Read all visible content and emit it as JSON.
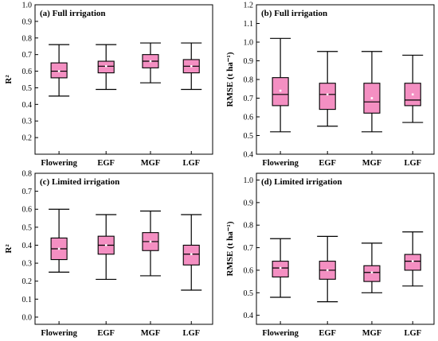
{
  "colors": {
    "box_fill": "#f48fc2",
    "whisker": "#000000",
    "mean_marker": "#ffffff",
    "frame": "#000000"
  },
  "chart_data": [
    {
      "id": "a",
      "type": "box",
      "title": "(a)  Full irrigation",
      "ylabel": "R²",
      "ylim": [
        0.1,
        1.0
      ],
      "yticks": [
        "0.2",
        "0.3",
        "0.4",
        "0.5",
        "0.6",
        "0.7",
        "0.8",
        "0.9",
        "1.0"
      ],
      "categories": [
        "Flowering",
        "EGF",
        "MGF",
        "LGF"
      ],
      "boxes": [
        {
          "min": 0.45,
          "q1": 0.56,
          "median": 0.6,
          "q3": 0.65,
          "max": 0.76,
          "mean": 0.6
        },
        {
          "min": 0.49,
          "q1": 0.59,
          "median": 0.63,
          "q3": 0.66,
          "max": 0.76,
          "mean": 0.63
        },
        {
          "min": 0.53,
          "q1": 0.62,
          "median": 0.66,
          "q3": 0.7,
          "max": 0.77,
          "mean": 0.66
        },
        {
          "min": 0.49,
          "q1": 0.59,
          "median": 0.63,
          "q3": 0.67,
          "max": 0.77,
          "mean": 0.63
        }
      ]
    },
    {
      "id": "b",
      "type": "box",
      "title": "(b)  Full irrigation",
      "ylabel": "RMSE (t ha⁻¹)",
      "ylim": [
        0.4,
        1.2
      ],
      "yticks": [
        "0.4",
        "0.5",
        "0.6",
        "0.7",
        "0.8",
        "0.9",
        "1.0",
        "1.1",
        "1.2"
      ],
      "categories": [
        "Flowering",
        "EGF",
        "MGF",
        "LGF"
      ],
      "boxes": [
        {
          "min": 0.52,
          "q1": 0.66,
          "median": 0.72,
          "q3": 0.81,
          "max": 1.02,
          "mean": 0.74
        },
        {
          "min": 0.55,
          "q1": 0.64,
          "median": 0.72,
          "q3": 0.78,
          "max": 0.95,
          "mean": 0.72
        },
        {
          "min": 0.52,
          "q1": 0.62,
          "median": 0.68,
          "q3": 0.78,
          "max": 0.95,
          "mean": 0.7
        },
        {
          "min": 0.57,
          "q1": 0.66,
          "median": 0.69,
          "q3": 0.78,
          "max": 0.93,
          "mean": 0.72
        }
      ]
    },
    {
      "id": "c",
      "type": "box",
      "title": "(c)  Limited irrigation",
      "ylabel": "R²",
      "ylim": [
        -0.04,
        0.8
      ],
      "yticks": [
        "0.0",
        "0.1",
        "0.2",
        "0.3",
        "0.4",
        "0.5",
        "0.6",
        "0.7",
        "0.8"
      ],
      "categories": [
        "Flowering",
        "EGF",
        "MGF",
        "LGF"
      ],
      "boxes": [
        {
          "min": 0.25,
          "q1": 0.32,
          "median": 0.38,
          "q3": 0.44,
          "max": 0.6,
          "mean": 0.38
        },
        {
          "min": 0.21,
          "q1": 0.35,
          "median": 0.4,
          "q3": 0.45,
          "max": 0.57,
          "mean": 0.4
        },
        {
          "min": 0.23,
          "q1": 0.37,
          "median": 0.42,
          "q3": 0.47,
          "max": 0.59,
          "mean": 0.42
        },
        {
          "min": 0.15,
          "q1": 0.29,
          "median": 0.35,
          "q3": 0.4,
          "max": 0.57,
          "mean": 0.35
        }
      ]
    },
    {
      "id": "d",
      "type": "box",
      "title": "(d)  Limited irrigation",
      "ylabel": "RMSE (t ha⁻¹)",
      "ylim": [
        0.36,
        1.03
      ],
      "yticks": [
        "0.4",
        "0.5",
        "0.6",
        "0.7",
        "0.8",
        "0.9",
        "1.0"
      ],
      "categories": [
        "Flowering",
        "EGF",
        "MGF",
        "LGF"
      ],
      "boxes": [
        {
          "min": 0.48,
          "q1": 0.57,
          "median": 0.61,
          "q3": 0.64,
          "max": 0.74,
          "mean": 0.61
        },
        {
          "min": 0.46,
          "q1": 0.56,
          "median": 0.6,
          "q3": 0.64,
          "max": 0.75,
          "mean": 0.6
        },
        {
          "min": 0.5,
          "q1": 0.55,
          "median": 0.59,
          "q3": 0.62,
          "max": 0.72,
          "mean": 0.59
        },
        {
          "min": 0.53,
          "q1": 0.6,
          "median": 0.64,
          "q3": 0.67,
          "max": 0.77,
          "mean": 0.64
        }
      ]
    }
  ]
}
